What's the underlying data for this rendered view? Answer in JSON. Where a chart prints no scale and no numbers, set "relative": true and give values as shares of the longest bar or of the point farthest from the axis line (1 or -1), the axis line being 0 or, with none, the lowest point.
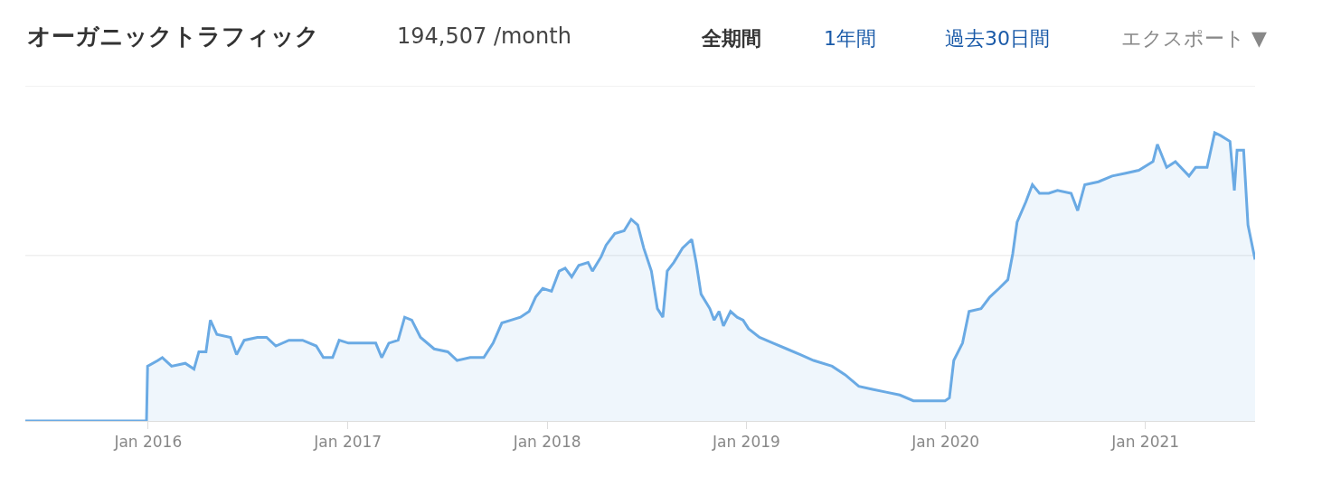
{
  "chart_data": {
    "type": "area",
    "title": "オーガニックトラフィック",
    "subtitle": "194,507 /month",
    "annotations": [
      "全期間",
      "1年間",
      "過去30日間",
      "エクスポート ▼"
    ],
    "relative": true,
    "marker": "none",
    "line_style": "solid",
    "ref_lines": [
      {
        "axis": "y",
        "value": 0.574,
        "color": "#e6e6e6"
      },
      {
        "axis": "y",
        "value": 1.163,
        "color": "#e6e6e6"
      }
    ],
    "xlim": [
      "2015-05-21",
      "2021-07-21"
    ],
    "xticks": [
      {
        "value": "2016-01-01",
        "label": "Jan 2016"
      },
      {
        "value": "2017-01-01",
        "label": "Jan 2017"
      },
      {
        "value": "2018-01-01",
        "label": "Jan 2018"
      },
      {
        "value": "2019-01-01",
        "label": "Jan 2019"
      },
      {
        "value": "2020-01-01",
        "label": "Jan 2020"
      },
      {
        "value": "2021-01-01",
        "label": "Jan 2021"
      }
    ],
    "x": [
      "2015-05-21",
      "2015-12-29",
      "2015-12-31",
      "2016-01-19",
      "2016-01-27",
      "2016-02-13",
      "2016-03-09",
      "2016-03-25",
      "2016-04-03",
      "2016-04-16",
      "2016-04-24",
      "2016-05-06",
      "2016-05-31",
      "2016-06-11",
      "2016-06-25",
      "2016-07-19",
      "2016-08-05",
      "2016-08-22",
      "2016-09-15",
      "2016-10-10",
      "2016-11-04",
      "2016-11-17",
      "2016-12-04",
      "2016-12-16",
      "2017-01-02",
      "2017-01-27",
      "2017-02-21",
      "2017-03-04",
      "2017-03-17",
      "2017-04-03",
      "2017-04-15",
      "2017-04-28",
      "2017-05-14",
      "2017-06-08",
      "2017-07-03",
      "2017-07-20",
      "2017-08-13",
      "2017-09-07",
      "2017-09-24",
      "2017-10-10",
      "2017-10-27",
      "2017-11-13",
      "2017-11-29",
      "2017-12-11",
      "2017-12-24",
      "2018-01-09",
      "2018-01-23",
      "2018-02-03",
      "2018-02-15",
      "2018-02-28",
      "2018-03-17",
      "2018-03-25",
      "2018-04-10",
      "2018-04-19",
      "2018-05-05",
      "2018-05-22",
      "2018-06-04",
      "2018-06-16",
      "2018-06-27",
      "2018-07-11",
      "2018-07-22",
      "2018-08-01",
      "2018-08-09",
      "2018-08-21",
      "2018-09-06",
      "2018-09-23",
      "2018-10-01",
      "2018-10-10",
      "2018-10-26",
      "2018-11-03",
      "2018-11-12",
      "2018-11-20",
      "2018-12-03",
      "2018-12-15",
      "2018-12-26",
      "2019-01-05",
      "2019-01-25",
      "2019-02-19",
      "2019-03-16",
      "2019-04-10",
      "2019-05-04",
      "2019-06-07",
      "2019-07-01",
      "2019-07-26",
      "2019-08-20",
      "2019-09-14",
      "2019-10-09",
      "2019-11-03",
      "2019-12-06",
      "2019-12-31",
      "2020-01-08",
      "2020-01-16",
      "2020-02-01",
      "2020-02-13",
      "2020-03-06",
      "2020-03-22",
      "2020-04-08",
      "2020-04-24",
      "2020-05-03",
      "2020-05-11",
      "2020-05-27",
      "2020-06-08",
      "2020-06-21",
      "2020-07-08",
      "2020-07-24",
      "2020-08-18",
      "2020-08-30",
      "2020-09-12",
      "2020-10-07",
      "2020-11-01",
      "2020-11-26",
      "2020-12-20",
      "2021-01-15",
      "2021-01-23",
      "2021-02-09",
      "2021-02-25",
      "2021-03-22",
      "2021-04-03",
      "2021-04-24",
      "2021-05-08",
      "2021-05-19",
      "2021-06-05",
      "2021-06-13",
      "2021-06-18",
      "2021-06-30",
      "2021-07-08",
      "2021-07-21"
    ],
    "series": [
      {
        "color": "#6aaae4",
        "values": [
          0,
          0,
          0.19,
          0.21,
          0.22,
          0.19,
          0.2,
          0.18,
          0.24,
          0.24,
          0.35,
          0.3,
          0.29,
          0.23,
          0.28,
          0.29,
          0.29,
          0.26,
          0.28,
          0.28,
          0.26,
          0.22,
          0.22,
          0.28,
          0.27,
          0.27,
          0.27,
          0.22,
          0.27,
          0.28,
          0.36,
          0.35,
          0.29,
          0.25,
          0.24,
          0.21,
          0.22,
          0.22,
          0.27,
          0.34,
          0.35,
          0.36,
          0.38,
          0.43,
          0.46,
          0.45,
          0.52,
          0.53,
          0.5,
          0.54,
          0.55,
          0.52,
          0.57,
          0.61,
          0.65,
          0.66,
          0.7,
          0.68,
          0.6,
          0.52,
          0.39,
          0.36,
          0.52,
          0.55,
          0.6,
          0.63,
          0.55,
          0.44,
          0.39,
          0.35,
          0.38,
          0.33,
          0.38,
          0.36,
          0.35,
          0.32,
          0.29,
          0.27,
          0.25,
          0.23,
          0.21,
          0.19,
          0.16,
          0.12,
          0.11,
          0.1,
          0.09,
          0.07,
          0.07,
          0.07,
          0.08,
          0.21,
          0.27,
          0.38,
          0.39,
          0.43,
          0.46,
          0.49,
          0.58,
          0.69,
          0.76,
          0.82,
          0.79,
          0.79,
          0.8,
          0.79,
          0.73,
          0.82,
          0.83,
          0.85,
          0.86,
          0.87,
          0.9,
          0.96,
          0.88,
          0.9,
          0.85,
          0.88,
          0.88,
          1.0,
          0.99,
          0.97,
          0.8,
          0.94,
          0.94,
          0.68,
          0.56
        ]
      }
    ]
  }
}
